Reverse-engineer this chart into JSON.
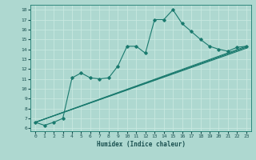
{
  "xlabel": "Humidex (Indice chaleur)",
  "bg_color": "#aed8d0",
  "grid_color": "#c8e8e0",
  "line_color": "#1a7a6e",
  "xlim": [
    -0.5,
    23.5
  ],
  "ylim": [
    5.7,
    18.5
  ],
  "xticks": [
    0,
    1,
    2,
    3,
    4,
    5,
    6,
    7,
    8,
    9,
    10,
    11,
    12,
    13,
    14,
    15,
    16,
    17,
    18,
    19,
    20,
    21,
    22,
    23
  ],
  "yticks": [
    6,
    7,
    8,
    9,
    10,
    11,
    12,
    13,
    14,
    15,
    16,
    17,
    18
  ],
  "series1_x": [
    0,
    1,
    2,
    3,
    4,
    5,
    6,
    7,
    8,
    9,
    10,
    11,
    12,
    13,
    14,
    15,
    16,
    17,
    18,
    19,
    20,
    21,
    22,
    23
  ],
  "series1_y": [
    6.6,
    6.3,
    6.6,
    7.0,
    11.1,
    11.6,
    11.1,
    11.0,
    11.1,
    12.3,
    14.3,
    14.3,
    13.6,
    17.0,
    17.0,
    18.0,
    16.6,
    15.8,
    15.0,
    14.3,
    14.0,
    13.8,
    14.2,
    14.3
  ],
  "line2_x": [
    0,
    23
  ],
  "line2_y": [
    6.6,
    14.1
  ],
  "line3_x": [
    0,
    23
  ],
  "line3_y": [
    6.6,
    14.2
  ],
  "line4_x": [
    0,
    23
  ],
  "line4_y": [
    6.6,
    14.3
  ]
}
